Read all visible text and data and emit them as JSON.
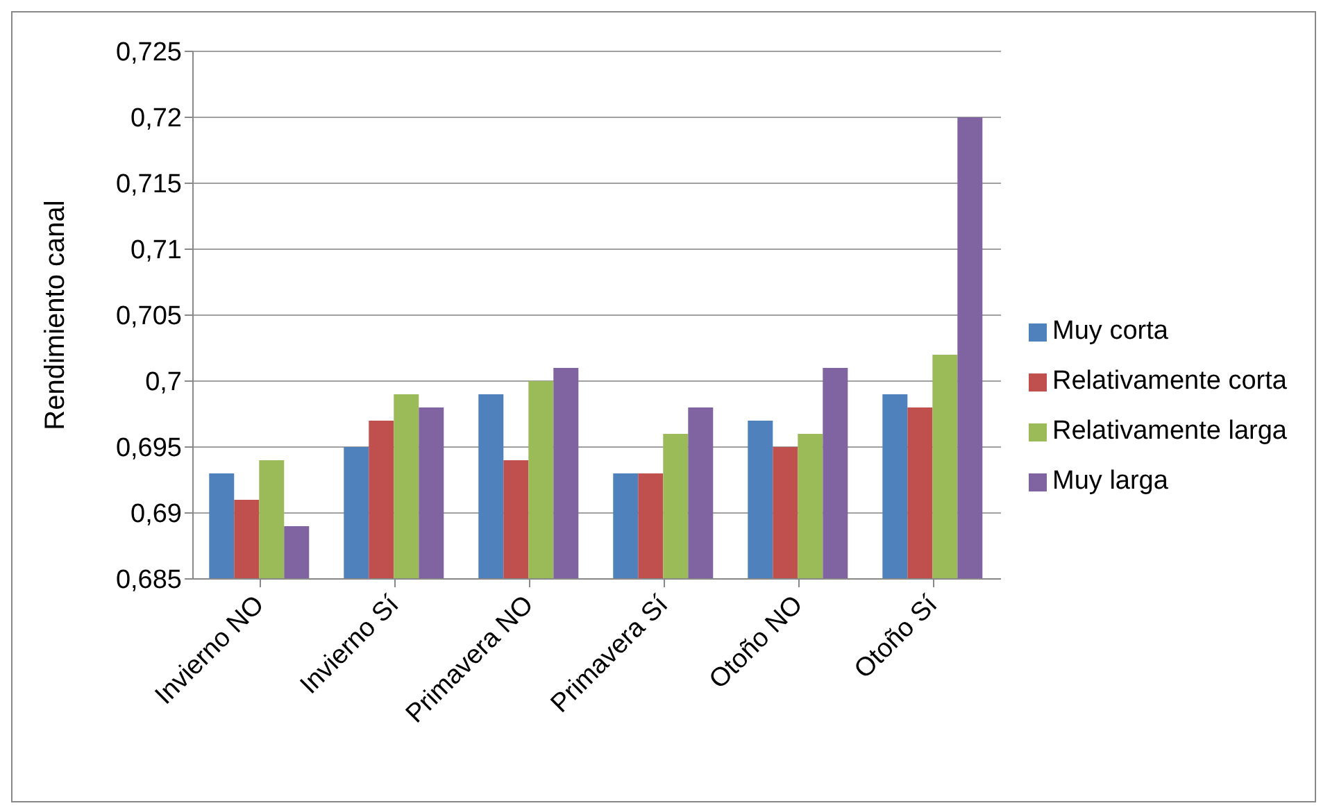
{
  "chart_data": {
    "type": "bar",
    "ylabel": "Rendimiento canal",
    "categories": [
      "Invierno NO",
      "Invierno Sí",
      "Primavera NO",
      "Primavera Sí",
      "Otoño NO",
      "Otoño Sí"
    ],
    "series": [
      {
        "name": "Muy corta",
        "color": "#4f81bd",
        "values": [
          0.693,
          0.695,
          0.699,
          0.693,
          0.697,
          0.699
        ]
      },
      {
        "name": "Relativamente corta",
        "color": "#c0504d",
        "values": [
          0.691,
          0.697,
          0.694,
          0.693,
          0.695,
          0.698
        ]
      },
      {
        "name": "Relativamente larga",
        "color": "#9bbb59",
        "values": [
          0.694,
          0.699,
          0.7,
          0.696,
          0.696,
          0.702
        ]
      },
      {
        "name": "Muy larga",
        "color": "#8064a2",
        "values": [
          0.689,
          0.698,
          0.701,
          0.698,
          0.701,
          0.72
        ]
      }
    ],
    "ylim": [
      0.685,
      0.725
    ],
    "yticks": [
      {
        "value": 0.685,
        "label": "0,685"
      },
      {
        "value": 0.69,
        "label": "0,69"
      },
      {
        "value": 0.695,
        "label": "0,695"
      },
      {
        "value": 0.7,
        "label": "0,7"
      },
      {
        "value": 0.705,
        "label": "0,705"
      },
      {
        "value": 0.71,
        "label": "0,71"
      },
      {
        "value": 0.715,
        "label": "0,715"
      },
      {
        "value": 0.72,
        "label": "0,72"
      },
      {
        "value": 0.725,
        "label": "0,725"
      }
    ],
    "grid": "y",
    "legend": "right"
  }
}
